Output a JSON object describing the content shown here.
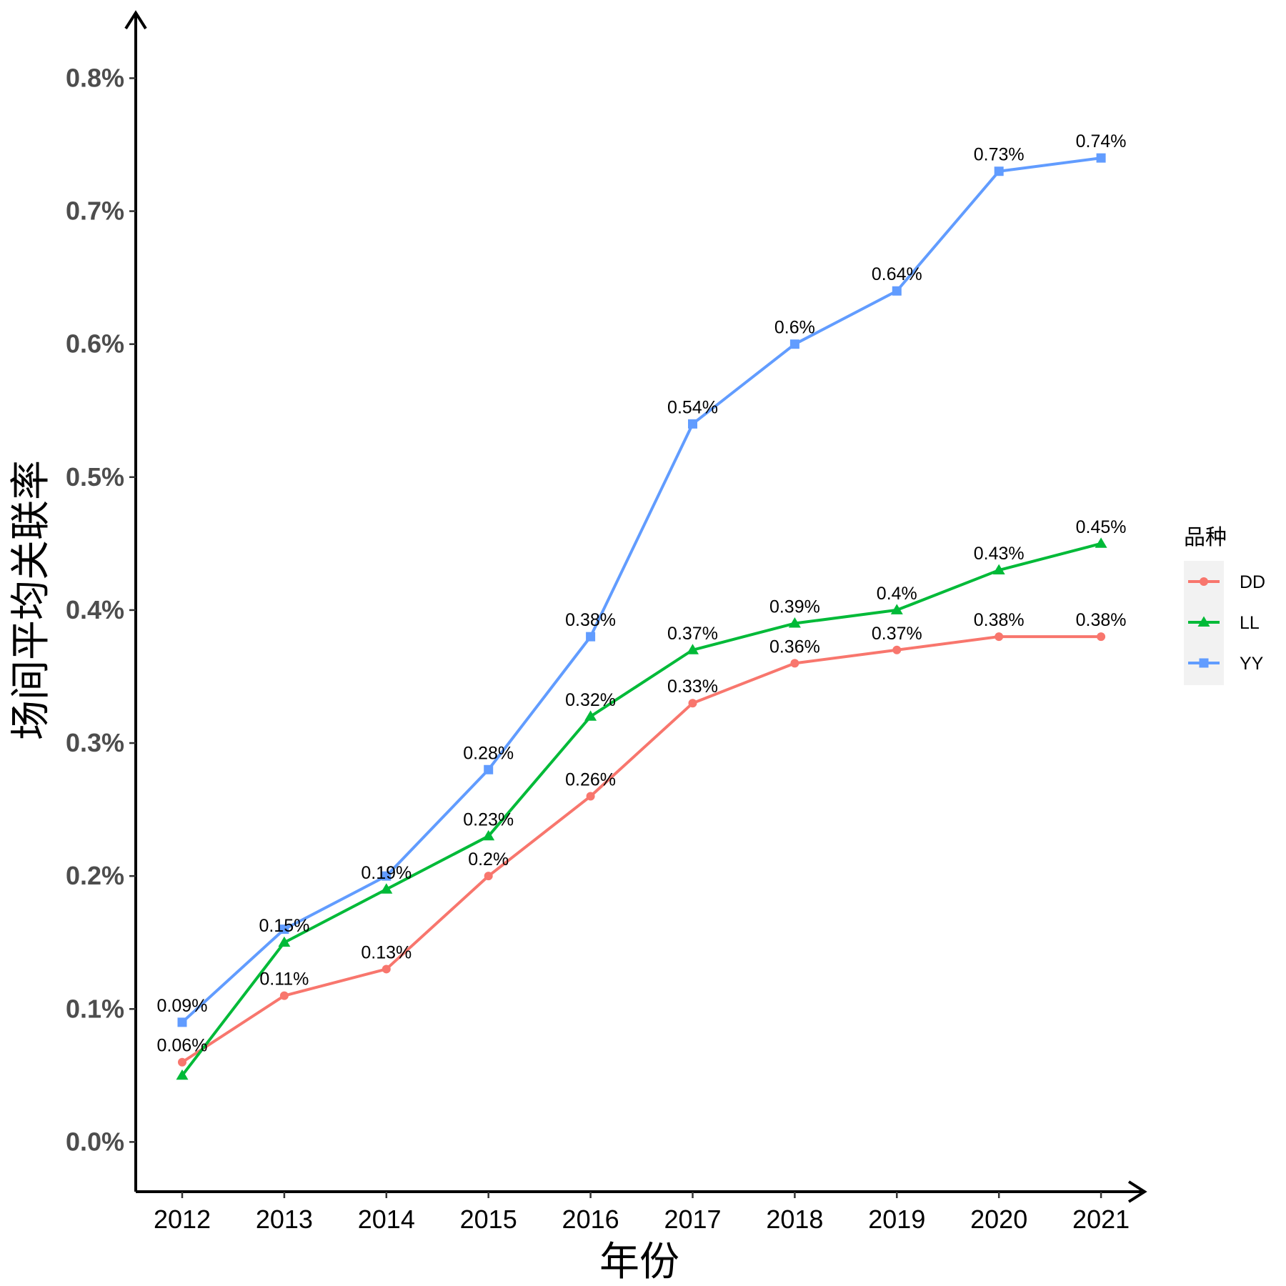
{
  "chart_data": {
    "type": "line",
    "title": "",
    "xlabel": "年份",
    "ylabel": "场间平均关联率",
    "categories": [
      "2012",
      "2013",
      "2014",
      "2015",
      "2016",
      "2017",
      "2018",
      "2019",
      "2020",
      "2021"
    ],
    "ylim": [
      -0.0374,
      0.84
    ],
    "y_ticks": [
      "0.0%",
      "0.1%",
      "0.2%",
      "0.3%",
      "0.4%",
      "0.5%",
      "0.6%",
      "0.7%",
      "0.8%"
    ],
    "y_tick_values": [
      0,
      0.1,
      0.2,
      0.3,
      0.4,
      0.5,
      0.6,
      0.7,
      0.8
    ],
    "grid": false,
    "legend": {
      "title": "品种",
      "placement": "right"
    },
    "series": [
      {
        "name": "DD",
        "color": "#F8766D",
        "marker": "circle",
        "values": [
          0.06,
          0.11,
          0.13,
          0.2,
          0.26,
          0.33,
          0.36,
          0.37,
          0.38,
          0.38
        ],
        "labels": [
          "0.06%",
          "0.11%",
          "0.13%",
          "0.2%",
          "0.26%",
          "0.33%",
          "0.36%",
          "0.37%",
          "0.38%",
          "0.38%"
        ]
      },
      {
        "name": "LL",
        "color": "#00BA38",
        "marker": "triangle",
        "values": [
          0.05,
          0.15,
          0.19,
          0.23,
          0.32,
          0.37,
          0.39,
          0.4,
          0.43,
          0.45
        ],
        "labels": [
          "",
          "0.15%",
          "0.19%",
          "0.23%",
          "0.32%",
          "0.37%",
          "0.39%",
          "0.4%",
          "0.43%",
          "0.45%"
        ]
      },
      {
        "name": "YY",
        "color": "#619CFF",
        "marker": "square",
        "values": [
          0.09,
          0.16,
          0.2,
          0.28,
          0.38,
          0.54,
          0.6,
          0.64,
          0.73,
          0.74
        ],
        "labels": [
          "0.09%",
          "",
          "",
          "0.28%",
          "0.38%",
          "0.54%",
          "0.6%",
          "0.64%",
          "0.73%",
          "0.74%"
        ]
      }
    ]
  }
}
